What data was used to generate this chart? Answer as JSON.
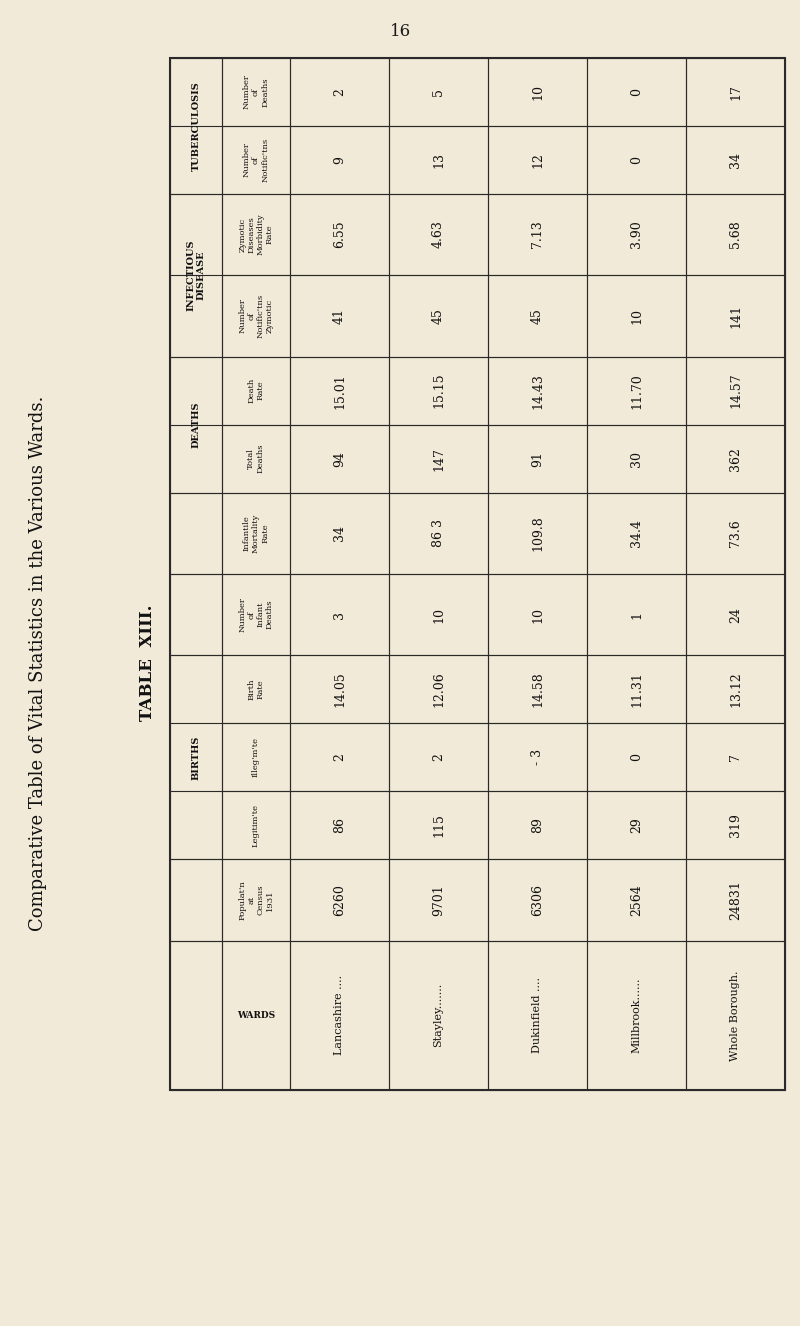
{
  "title": "Comparative Table of Vital Statistics in the Various Wards.",
  "subtitle": "TABLE  XIII.",
  "page_number": "16",
  "background_color": "#f2ead8",
  "wards": [
    "Lancashire ....",
    "Stayley.......",
    "Dukinfield ....",
    "Millbrook......",
    "Whole Borough."
  ],
  "population": [
    "6260",
    "9701",
    "6306",
    "2564",
    "24831"
  ],
  "births_legit": [
    "86",
    "115",
    "89",
    "29",
    "319"
  ],
  "births_illeg": [
    "2",
    "2",
    "- 3",
    "0",
    "7"
  ],
  "birth_rate": [
    "14.05",
    "12.06",
    "14.58",
    "11.31",
    "13.12"
  ],
  "infant_deaths": [
    "3",
    "10",
    "10",
    "1",
    "24"
  ],
  "infant_mortality_rate": [
    "34",
    "86 3",
    "109.8",
    "34.4",
    "73.6"
  ],
  "total_deaths": [
    "94",
    "147",
    "91",
    "30",
    "362"
  ],
  "death_rate": [
    "15.01",
    "15.15",
    "14.43",
    "11.70",
    "14.57"
  ],
  "infect_notific_zymotic": [
    "41",
    "45",
    "45",
    "10",
    "141"
  ],
  "infect_zymotic_morbidity_rate": [
    "6.55",
    "4.63",
    "7.13",
    "3.90",
    "5.68"
  ],
  "tb_notifications": [
    "9",
    "13",
    "12",
    "0",
    "34"
  ],
  "tb_deaths": [
    "2",
    "5",
    "10",
    "0",
    "17"
  ],
  "row_labels": [
    [
      "TUBERCULOSIS",
      "Number\nof\nDeaths"
    ],
    [
      "TUBERCULOSIS",
      "Number\nof\nNotific’tns"
    ],
    [
      "INFECTIOUS\nDISEASE",
      "Zymotic\nDiseases\nMorbidity\nRate"
    ],
    [
      "INFECTIOUS\nDISEASE",
      "Number\nof\nNotific’tns\nZymotic"
    ],
    [
      "DEATHS",
      "Death\nRate"
    ],
    [
      "DEATHS",
      "Total\nDeaths"
    ],
    [
      "",
      "Infantile\nMortality\nRate"
    ],
    [
      "",
      "Number\nof\nInfant\nDeaths"
    ],
    [
      "BIRTHS",
      "Birth\nRate"
    ],
    [
      "BIRTHS",
      "Illeg’m’te"
    ],
    [
      "BIRTHS",
      "Legitim’te"
    ],
    [
      "",
      "Populat’n\nat\nCensus\n1931"
    ],
    [
      "",
      "WARDS"
    ]
  ]
}
